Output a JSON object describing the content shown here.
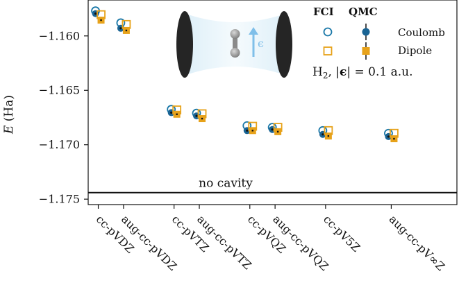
{
  "chart_data": {
    "type": "scatter",
    "ylabel_symbol": "E",
    "ylabel_unit": " (Ha)",
    "ylim": [
      -1.1755,
      -1.1567
    ],
    "yticks": [
      -1.16,
      -1.165,
      -1.17,
      -1.175
    ],
    "ytick_labels": [
      "−1.160",
      "−1.165",
      "−1.170",
      "−1.175"
    ],
    "categories": [
      "cc-pVDZ",
      "aug-cc-pVDZ",
      "cc-pVTZ",
      "aug-cc-pVTZ",
      "cc-pVQZ",
      "aug-cc-pVQZ",
      "cc-pV5Z",
      "aug-cc-pV∞Z"
    ],
    "category_positions": [
      1,
      2,
      4,
      5,
      7,
      8,
      10,
      12.6
    ],
    "xlim": [
      0.6,
      15.2
    ],
    "series": [
      {
        "name": "Coulomb",
        "method": "FCI",
        "marker": "circle-open",
        "color": "#1a78a8",
        "values": [
          -1.1577,
          -1.1588,
          -1.16675,
          -1.1671,
          -1.16825,
          -1.1684,
          -1.1687,
          -1.16895
        ]
      },
      {
        "name": "Coulomb",
        "method": "QMC",
        "marker": "circle-filled",
        "color": "#1a6494",
        "values": [
          -1.15795,
          -1.1593,
          -1.16705,
          -1.16735,
          -1.1687,
          -1.1686,
          -1.16905,
          -1.16925
        ]
      },
      {
        "name": "Dipole",
        "method": "FCI",
        "marker": "square-open",
        "color": "#e7a21a",
        "values": [
          -1.15805,
          -1.15895,
          -1.1668,
          -1.16715,
          -1.1683,
          -1.1684,
          -1.1687,
          -1.16895
        ]
      },
      {
        "name": "Dipole",
        "method": "QMC",
        "marker": "square-filled",
        "color": "#e7a21a",
        "values": [
          -1.15855,
          -1.1595,
          -1.1672,
          -1.1676,
          -1.1687,
          -1.1688,
          -1.1692,
          -1.16945
        ]
      }
    ],
    "reference_line": {
      "label": "no cavity",
      "value": -1.1744
    },
    "legend": {
      "placement": "top-right",
      "header_fci": "FCI",
      "header_qmc": "QMC",
      "row1": "Coulomb",
      "row2": "Dipole",
      "annotation_main": "H",
      "annotation_sub": "2",
      "annotation_rest": ", |",
      "annotation_eps": "ϵ",
      "annotation_tail": "| = 0.1 a.u."
    },
    "inset_symbol": "ϵ",
    "colors": {
      "coulomb": "#1a78a8",
      "dipole": "#e7a21a",
      "arrow": "#7fbfe9"
    }
  }
}
